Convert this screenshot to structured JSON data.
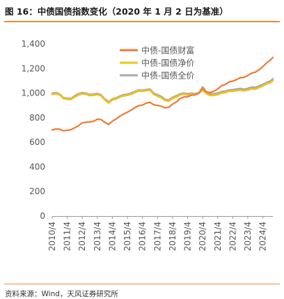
{
  "header": {
    "title": "图 16：中债国债指数变化（2020 年 1 月 2 日为基准）"
  },
  "footer": {
    "source": "资料来源：Wind，天风证券研究所"
  },
  "chart_data": {
    "type": "line",
    "title": "",
    "xlabel": "",
    "ylabel": "",
    "ylim": [
      0,
      1400
    ],
    "yticks": [
      0,
      200,
      400,
      600,
      800,
      1000,
      1200,
      1400
    ],
    "ytick_labels": [
      "0",
      "200",
      "400",
      "600",
      "800",
      "1,000",
      "1,200",
      "1,400"
    ],
    "xticks": [
      "2010/4",
      "2011/4",
      "2012/4",
      "2013/4",
      "2014/4",
      "2015/4",
      "2016/4",
      "2017/4",
      "2018/4",
      "2019/4",
      "2020/4",
      "2021/4",
      "2022/4",
      "2023/4",
      "2024/4"
    ],
    "xrange": [
      "2010-04",
      "2024-12"
    ],
    "legend_position": "top-right",
    "grid": false,
    "series": [
      {
        "name": "中债-国债财富",
        "color": "#ee7b30",
        "points": [
          [
            "2010-04",
            700
          ],
          [
            "2010-07",
            708
          ],
          [
            "2010-10",
            706
          ],
          [
            "2011-01",
            693
          ],
          [
            "2011-04",
            697
          ],
          [
            "2011-07",
            702
          ],
          [
            "2011-10",
            718
          ],
          [
            "2012-01",
            735
          ],
          [
            "2012-04",
            758
          ],
          [
            "2012-07",
            763
          ],
          [
            "2012-10",
            765
          ],
          [
            "2013-01",
            770
          ],
          [
            "2013-04",
            788
          ],
          [
            "2013-07",
            785
          ],
          [
            "2013-10",
            762
          ],
          [
            "2014-01",
            745
          ],
          [
            "2014-04",
            772
          ],
          [
            "2014-07",
            790
          ],
          [
            "2014-10",
            812
          ],
          [
            "2015-01",
            830
          ],
          [
            "2015-04",
            845
          ],
          [
            "2015-07",
            862
          ],
          [
            "2015-10",
            882
          ],
          [
            "2016-01",
            898
          ],
          [
            "2016-04",
            903
          ],
          [
            "2016-07",
            918
          ],
          [
            "2016-10",
            925
          ],
          [
            "2017-01",
            905
          ],
          [
            "2017-04",
            900
          ],
          [
            "2017-07",
            893
          ],
          [
            "2017-10",
            880
          ],
          [
            "2018-01",
            885
          ],
          [
            "2018-04",
            910
          ],
          [
            "2018-07",
            928
          ],
          [
            "2018-10",
            955
          ],
          [
            "2019-01",
            968
          ],
          [
            "2019-04",
            970
          ],
          [
            "2019-07",
            982
          ],
          [
            "2019-10",
            985
          ],
          [
            "2020-01",
            1000
          ],
          [
            "2020-04",
            1038
          ],
          [
            "2020-07",
            1010
          ],
          [
            "2020-10",
            1005
          ],
          [
            "2021-01",
            1015
          ],
          [
            "2021-04",
            1033
          ],
          [
            "2021-07",
            1060
          ],
          [
            "2021-10",
            1070
          ],
          [
            "2022-01",
            1090
          ],
          [
            "2022-04",
            1098
          ],
          [
            "2022-07",
            1110
          ],
          [
            "2022-10",
            1125
          ],
          [
            "2023-01",
            1128
          ],
          [
            "2023-04",
            1143
          ],
          [
            "2023-07",
            1162
          ],
          [
            "2023-10",
            1170
          ],
          [
            "2024-01",
            1190
          ],
          [
            "2024-04",
            1215
          ],
          [
            "2024-07",
            1245
          ],
          [
            "2024-10",
            1268
          ],
          [
            "2024-12",
            1290
          ]
        ]
      },
      {
        "name": "中债-国债净价",
        "color": "#f2c21a",
        "points": [
          [
            "2010-04",
            990
          ],
          [
            "2010-07",
            995
          ],
          [
            "2010-10",
            985
          ],
          [
            "2011-01",
            955
          ],
          [
            "2011-04",
            950
          ],
          [
            "2011-07",
            948
          ],
          [
            "2011-10",
            968
          ],
          [
            "2012-01",
            985
          ],
          [
            "2012-04",
            995
          ],
          [
            "2012-07",
            990
          ],
          [
            "2012-10",
            980
          ],
          [
            "2013-01",
            982
          ],
          [
            "2013-04",
            988
          ],
          [
            "2013-07",
            978
          ],
          [
            "2013-10",
            945
          ],
          [
            "2014-01",
            920
          ],
          [
            "2014-04",
            945
          ],
          [
            "2014-07",
            952
          ],
          [
            "2014-10",
            968
          ],
          [
            "2015-01",
            978
          ],
          [
            "2015-04",
            982
          ],
          [
            "2015-07",
            990
          ],
          [
            "2015-10",
            1005
          ],
          [
            "2016-01",
            1018
          ],
          [
            "2016-04",
            1015
          ],
          [
            "2016-07",
            1020
          ],
          [
            "2016-10",
            1025
          ],
          [
            "2017-01",
            990
          ],
          [
            "2017-04",
            975
          ],
          [
            "2017-07",
            962
          ],
          [
            "2017-10",
            940
          ],
          [
            "2018-01",
            935
          ],
          [
            "2018-04",
            955
          ],
          [
            "2018-07",
            968
          ],
          [
            "2018-10",
            985
          ],
          [
            "2019-01",
            992
          ],
          [
            "2019-04",
            985
          ],
          [
            "2019-07",
            990
          ],
          [
            "2019-10",
            988
          ],
          [
            "2020-01",
            1000
          ],
          [
            "2020-04",
            1025
          ],
          [
            "2020-07",
            995
          ],
          [
            "2020-10",
            980
          ],
          [
            "2021-01",
            982
          ],
          [
            "2021-04",
            988
          ],
          [
            "2021-07",
            1000
          ],
          [
            "2021-10",
            1003
          ],
          [
            "2022-01",
            1015
          ],
          [
            "2022-04",
            1015
          ],
          [
            "2022-07",
            1020
          ],
          [
            "2022-10",
            1025
          ],
          [
            "2023-01",
            1018
          ],
          [
            "2023-04",
            1025
          ],
          [
            "2023-07",
            1035
          ],
          [
            "2023-10",
            1032
          ],
          [
            "2024-01",
            1045
          ],
          [
            "2024-04",
            1058
          ],
          [
            "2024-07",
            1075
          ],
          [
            "2024-10",
            1085
          ],
          [
            "2024-12",
            1100
          ]
        ]
      },
      {
        "name": "中债-国债全价",
        "color": "#a9a9a9",
        "points": [
          [
            "2010-04",
            998
          ],
          [
            "2010-07",
            1003
          ],
          [
            "2010-10",
            990
          ],
          [
            "2011-01",
            962
          ],
          [
            "2011-04",
            958
          ],
          [
            "2011-07",
            955
          ],
          [
            "2011-10",
            978
          ],
          [
            "2012-01",
            995
          ],
          [
            "2012-04",
            1003
          ],
          [
            "2012-07",
            998
          ],
          [
            "2012-10",
            988
          ],
          [
            "2013-01",
            990
          ],
          [
            "2013-04",
            996
          ],
          [
            "2013-07",
            985
          ],
          [
            "2013-10",
            952
          ],
          [
            "2014-01",
            928
          ],
          [
            "2014-04",
            952
          ],
          [
            "2014-07",
            960
          ],
          [
            "2014-10",
            976
          ],
          [
            "2015-01",
            986
          ],
          [
            "2015-04",
            990
          ],
          [
            "2015-07",
            1000
          ],
          [
            "2015-10",
            1013
          ],
          [
            "2016-01",
            1025
          ],
          [
            "2016-04",
            1022
          ],
          [
            "2016-07",
            1028
          ],
          [
            "2016-10",
            1032
          ],
          [
            "2017-01",
            998
          ],
          [
            "2017-04",
            985
          ],
          [
            "2017-07",
            972
          ],
          [
            "2017-10",
            948
          ],
          [
            "2018-01",
            944
          ],
          [
            "2018-04",
            965
          ],
          [
            "2018-07",
            978
          ],
          [
            "2018-10",
            993
          ],
          [
            "2019-01",
            1000
          ],
          [
            "2019-04",
            994
          ],
          [
            "2019-07",
            998
          ],
          [
            "2019-10",
            996
          ],
          [
            "2020-01",
            1000
          ],
          [
            "2020-04",
            1050
          ],
          [
            "2020-07",
            1008
          ],
          [
            "2020-10",
            993
          ],
          [
            "2021-01",
            995
          ],
          [
            "2021-04",
            1000
          ],
          [
            "2021-07",
            1012
          ],
          [
            "2021-10",
            1015
          ],
          [
            "2022-01",
            1025
          ],
          [
            "2022-04",
            1027
          ],
          [
            "2022-07",
            1032
          ],
          [
            "2022-10",
            1038
          ],
          [
            "2023-01",
            1030
          ],
          [
            "2023-04",
            1038
          ],
          [
            "2023-07",
            1048
          ],
          [
            "2023-10",
            1045
          ],
          [
            "2024-01",
            1058
          ],
          [
            "2024-04",
            1070
          ],
          [
            "2024-07",
            1085
          ],
          [
            "2024-10",
            1098
          ],
          [
            "2024-12",
            1115
          ]
        ]
      }
    ]
  }
}
